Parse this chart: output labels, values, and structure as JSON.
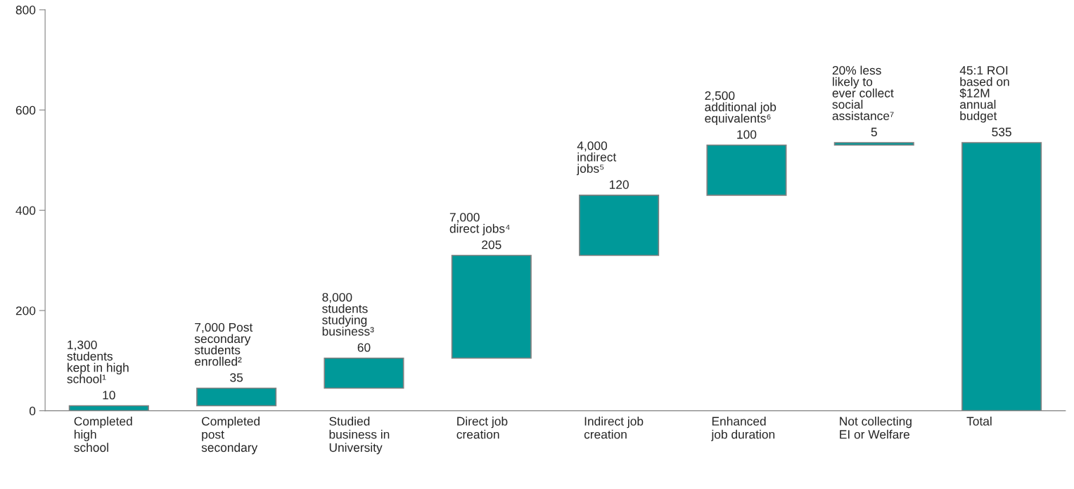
{
  "chart_data": {
    "type": "bar",
    "categories": [
      "Completed\nhigh\nschool",
      "Completed\npost\nsecondary",
      "Studied\nbusiness in\nUniversity",
      "Direct job\ncreation",
      "Indirect job\ncreation",
      "Enhanced\njob duration",
      "Not collecting\nEI or Welfare",
      "Total"
    ],
    "values": [
      10,
      35,
      60,
      205,
      120,
      100,
      5,
      535
    ],
    "base": [
      0,
      10,
      45,
      105,
      310,
      430,
      530,
      0
    ],
    "color": "#009999",
    "data_labels": true,
    "annotations": [
      "1,300\nstudents\nkept in high\nschool¹",
      "7,000 Post\nsecondary\nstudents\nenrolled²",
      "8,000\nstudents\nstudying\nbusiness³",
      "7,000\ndirect jobs⁴",
      "4,000\nindirect\njobs⁵",
      "2,500\nadditional job\nequivalents⁶",
      "20% less\nlikely to\never collect\nsocial\nassistance⁷",
      "45:1 ROI\nbased on\n$12M\nannual\nbudget"
    ],
    "ylim": [
      0,
      800
    ],
    "yticks": [
      0,
      200,
      400,
      600,
      800
    ],
    "grid": false,
    "legend": false
  }
}
